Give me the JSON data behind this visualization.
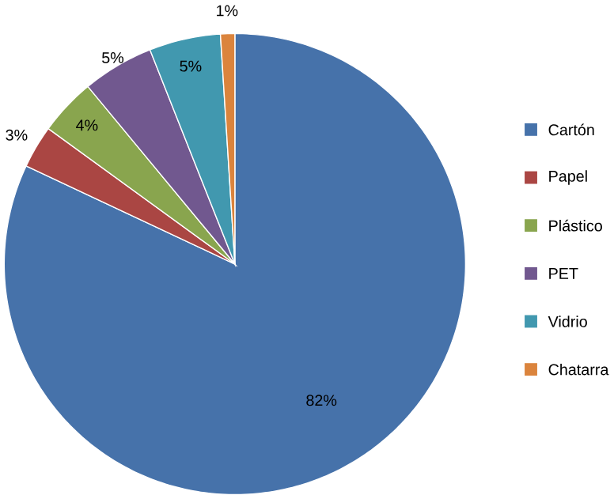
{
  "chart_data": {
    "type": "pie",
    "categories": [
      "Cartón",
      "Papel",
      "Plástico",
      "PET",
      "Vidrio",
      "Chatarra"
    ],
    "values": [
      82,
      3,
      4,
      5,
      5,
      1
    ],
    "value_labels": [
      "82%",
      "3%",
      "4%",
      "5%",
      "5%",
      "1%"
    ],
    "colors": [
      "#4672AA",
      "#AA4643",
      "#89A54E",
      "#71588F",
      "#4198AF",
      "#DB843D"
    ],
    "legend": "right"
  }
}
